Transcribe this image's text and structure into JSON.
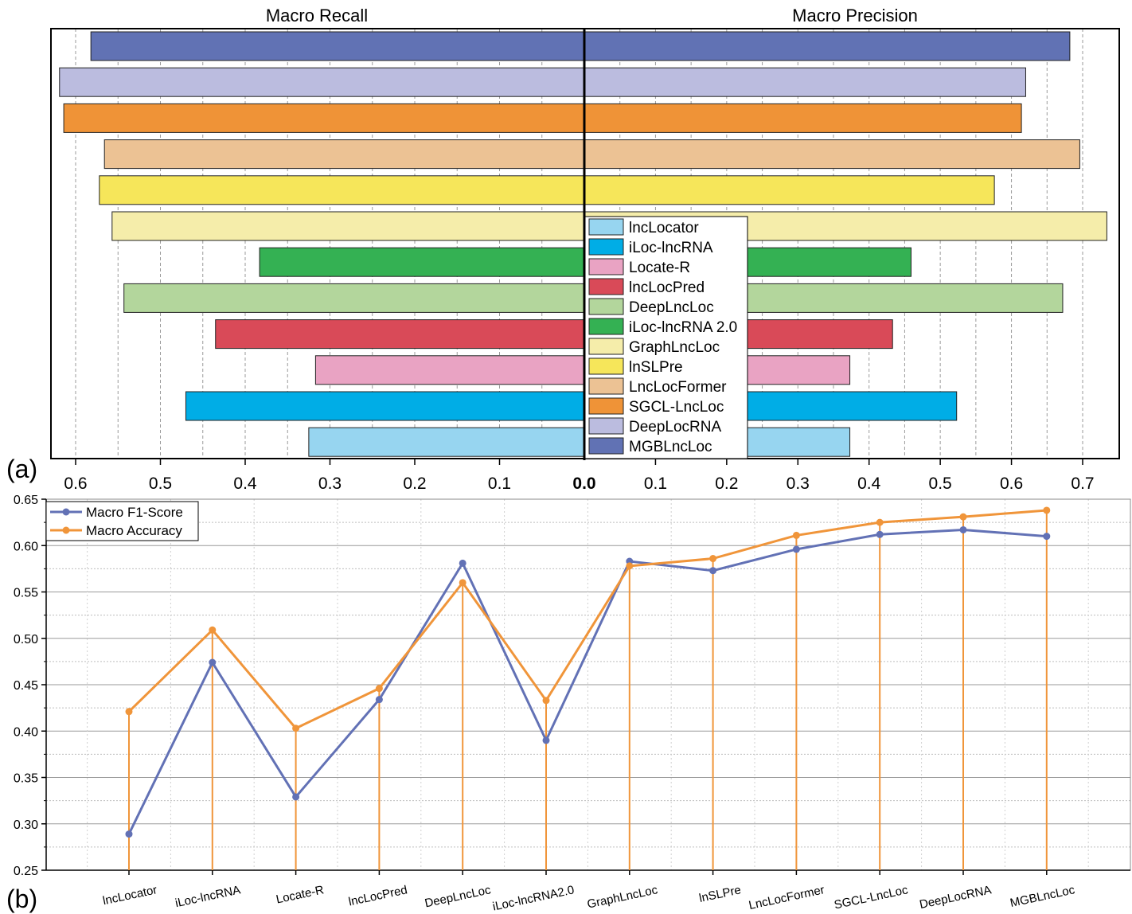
{
  "chart_data": [
    {
      "panel_label": "(a)",
      "type": "bar",
      "orientation": "horizontal-diverging",
      "left_title": "Macro Recall",
      "right_title": "Macro Precision",
      "zero_label": "0.0",
      "left_xlim": [
        0,
        0.62
      ],
      "right_xlim": [
        0,
        0.74
      ],
      "left_ticks": [
        0.6,
        0.5,
        0.4,
        0.3,
        0.2,
        0.1
      ],
      "right_ticks": [
        0.1,
        0.2,
        0.3,
        0.4,
        0.5,
        0.6,
        0.7
      ],
      "categories": [
        "lncLocator",
        "iLoc-lncRNA",
        "Locate-R",
        "lncLocPred",
        "DeepLncLoc",
        "iLoc-lncRNA 2.0",
        "GraphLncLoc",
        "lnSLPre",
        "LncLocFormer",
        "SGCL-LncLoc",
        "DeepLocRNA",
        "MGBLncLoc"
      ],
      "colors": [
        "#97d5f0",
        "#00ade6",
        "#e9a3c3",
        "#d94a58",
        "#b3d69c",
        "#34b153",
        "#f5edaa",
        "#f6e65a",
        "#ecc294",
        "#ef9337",
        "#bbbcdf",
        "#6172b4"
      ],
      "recall": [
        0.325,
        0.47,
        0.317,
        0.435,
        0.543,
        0.383,
        0.557,
        0.572,
        0.566,
        0.614,
        0.619,
        0.582
      ],
      "precision": [
        0.373,
        0.523,
        0.373,
        0.433,
        0.672,
        0.459,
        0.734,
        0.576,
        0.696,
        0.614,
        0.62,
        0.682
      ],
      "legend": [
        "lncLocator",
        "iLoc-lncRNA",
        "Locate-R",
        "lncLocPred",
        "DeepLncLoc",
        "iLoc-lncRNA 2.0",
        "GraphLncLoc",
        "lnSLPre",
        "LncLocFormer",
        "SGCL-LncLoc",
        "DeepLocRNA",
        "MGBLncLoc"
      ],
      "legend_placement": "center"
    },
    {
      "panel_label": "(b)",
      "type": "line",
      "categories": [
        "lncLocator",
        "iLoc-lncRNA",
        "Locate-R",
        "lncLocPred",
        "DeepLncLoc",
        "iLoc-lncRNA2.0",
        "GraphLncLoc",
        "lnSLPre",
        "LncLocFormer",
        "SGCL-LncLoc",
        "DeepLocRNA",
        "MGBLncLoc"
      ],
      "series": [
        {
          "name": "Macro F1-Score",
          "color": "#6271b5",
          "values": [
            0.289,
            0.474,
            0.329,
            0.434,
            0.581,
            0.39,
            0.583,
            0.573,
            0.596,
            0.612,
            0.617,
            0.61
          ]
        },
        {
          "name": "Macro Accuracy",
          "color": "#f0953a",
          "values": [
            0.421,
            0.509,
            0.403,
            0.446,
            0.56,
            0.433,
            0.578,
            0.586,
            0.611,
            0.625,
            0.631,
            0.638
          ]
        }
      ],
      "ylim": [
        0.25,
        0.65
      ],
      "yticks": [
        "0.25",
        "0.30",
        "0.35",
        "0.40",
        "0.45",
        "0.50",
        "0.55",
        "0.60",
        "0.65"
      ],
      "legend_placement": "top-left",
      "drop_lines_series": "Macro Accuracy"
    }
  ]
}
